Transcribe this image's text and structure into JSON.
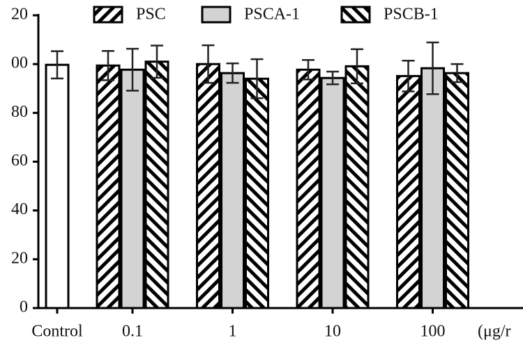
{
  "chart_data": {
    "type": "bar",
    "categories": [
      "Control",
      "0.1",
      "1",
      "10",
      "100"
    ],
    "x_label": "(μg/r",
    "series": [
      {
        "color": "#ffffff",
        "values": [
          99.7,
          null,
          null,
          null,
          null
        ],
        "errors": [
          5.6,
          null,
          null,
          null,
          null
        ]
      },
      {
        "name": "PSC",
        "color": "#ffffff",
        "hatch": "/",
        "values": [
          null,
          99.4,
          100,
          97.7,
          95.1
        ],
        "errors": [
          null,
          6,
          7.7,
          4,
          6.3
        ]
      },
      {
        "name": "PSCA-1",
        "color": "#d3d3d3",
        "values": [
          null,
          97.7,
          96.3,
          94.3,
          98.3
        ],
        "errors": [
          null,
          8.6,
          4,
          2.6,
          10.6
        ]
      },
      {
        "name": "PSCB-1",
        "color": "#ffffff",
        "hatch": "\\",
        "values": [
          null,
          101,
          94,
          99.1,
          96.3
        ],
        "errors": [
          null,
          6.6,
          8,
          7,
          3.7
        ]
      }
    ],
    "ylim": [
      0,
      120
    ],
    "yticks": [
      0,
      20,
      40,
      60,
      80,
      {
        "value": 100,
        "label": "00"
      },
      {
        "value": 120,
        "label": "20"
      }
    ],
    "legend": "top"
  }
}
